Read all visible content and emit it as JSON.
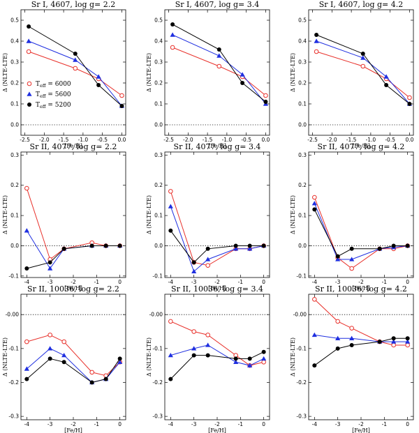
{
  "colors": {
    "t6000": "#e8302a",
    "t5600": "#1f2fe0",
    "t5200": "#000000"
  },
  "chart_data": [
    {
      "type": "line",
      "title": "Sr I, 4607, log g= 2.2",
      "xlabel": "[Fe/H]",
      "ylabel": "Δ (NLTE-LTE)",
      "xlim": [
        -2.6,
        0.1
      ],
      "ylim": [
        -0.05,
        0.55
      ],
      "xticks": [
        -2.5,
        -2.0,
        -1.5,
        -1.0,
        -0.5,
        0.0
      ],
      "xtick_labels": [
        "-2.5",
        "-2.0",
        "-1.5",
        "-1.0",
        "-0.5",
        "0.0"
      ],
      "yticks": [
        0.0,
        0.1,
        0.2,
        0.3,
        0.4,
        0.5
      ],
      "ytick_labels": [
        "0.0",
        "0.1",
        "0.2",
        "0.3",
        "0.4",
        "0.5"
      ],
      "series": [
        {
          "name": "T_eff = 6000",
          "color_key": "t6000",
          "marker": "open-circle",
          "x": [
            -2.4,
            -1.2,
            -0.6,
            0.0
          ],
          "y": [
            0.35,
            0.27,
            0.22,
            0.14
          ]
        },
        {
          "name": "T_eff = 5600",
          "color_key": "t5600",
          "marker": "triangle",
          "x": [
            -2.4,
            -1.2,
            -0.6,
            0.0
          ],
          "y": [
            0.4,
            0.31,
            0.23,
            0.09
          ]
        },
        {
          "name": "T_eff = 5200",
          "color_key": "t5200",
          "marker": "filled-circle",
          "x": [
            -2.4,
            -1.2,
            -0.6,
            0.0
          ],
          "y": [
            0.47,
            0.34,
            0.19,
            0.09
          ]
        }
      ],
      "legend": {
        "position": "lower-left",
        "entries": [
          {
            "label": "T",
            "sub": "eff",
            "value": " = 6000",
            "color_key": "t6000",
            "marker": "open-circle"
          },
          {
            "label": "T",
            "sub": "eff",
            "value": " = 5600",
            "color_key": "t5600",
            "marker": "triangle"
          },
          {
            "label": "T",
            "sub": "eff",
            "value": " = 5200",
            "color_key": "t5200",
            "marker": "filled-circle"
          }
        ]
      }
    },
    {
      "type": "line",
      "title": "Sr I, 4607, log g= 3.4",
      "xlabel": "[Fe/H]",
      "ylabel": "Δ (NLTE-LTE)",
      "xlim": [
        -2.6,
        0.1
      ],
      "ylim": [
        -0.05,
        0.55
      ],
      "xticks": [
        -2.5,
        -2.0,
        -1.5,
        -1.0,
        -0.5,
        0.0
      ],
      "xtick_labels": [
        "-2.5",
        "-2.0",
        "-1.5",
        "-1.0",
        "-0.5",
        "0.0"
      ],
      "yticks": [
        0.0,
        0.1,
        0.2,
        0.3,
        0.4,
        0.5
      ],
      "ytick_labels": [
        "0.0",
        "0.1",
        "0.2",
        "0.3",
        "0.4",
        "0.5"
      ],
      "series": [
        {
          "name": "T_eff = 6000",
          "color_key": "t6000",
          "marker": "open-circle",
          "x": [
            -2.4,
            -1.2,
            -0.6,
            0.0
          ],
          "y": [
            0.37,
            0.28,
            0.23,
            0.14
          ]
        },
        {
          "name": "T_eff = 5600",
          "color_key": "t5600",
          "marker": "triangle",
          "x": [
            -2.4,
            -1.2,
            -0.6,
            0.0
          ],
          "y": [
            0.43,
            0.33,
            0.24,
            0.1
          ]
        },
        {
          "name": "T_eff = 5200",
          "color_key": "t5200",
          "marker": "filled-circle",
          "x": [
            -2.4,
            -1.2,
            -0.6,
            0.0
          ],
          "y": [
            0.48,
            0.36,
            0.2,
            0.11
          ]
        }
      ]
    },
    {
      "type": "line",
      "title": "Sr I, 4607, log g= 4.2",
      "xlabel": "[Fe/H]",
      "ylabel": "Δ (NLTE-LTE)",
      "xlim": [
        -2.6,
        0.1
      ],
      "ylim": [
        -0.05,
        0.55
      ],
      "xticks": [
        -2.5,
        -2.0,
        -1.5,
        -1.0,
        -0.5,
        0.0
      ],
      "xtick_labels": [
        "-2.5",
        "-2.0",
        "-1.5",
        "-1.0",
        "-0.5",
        "0.0"
      ],
      "yticks": [
        0.0,
        0.1,
        0.2,
        0.3,
        0.4,
        0.5
      ],
      "ytick_labels": [
        "0.0",
        "0.1",
        "0.2",
        "0.3",
        "0.4",
        "0.5"
      ],
      "series": [
        {
          "name": "T_eff = 6000",
          "color_key": "t6000",
          "marker": "open-circle",
          "x": [
            -2.4,
            -1.2,
            -0.6,
            0.0
          ],
          "y": [
            0.35,
            0.28,
            0.22,
            0.13
          ]
        },
        {
          "name": "T_eff = 5600",
          "color_key": "t5600",
          "marker": "triangle",
          "x": [
            -2.4,
            -1.2,
            -0.6,
            0.0
          ],
          "y": [
            0.4,
            0.32,
            0.23,
            0.1
          ]
        },
        {
          "name": "T_eff = 5200",
          "color_key": "t5200",
          "marker": "filled-circle",
          "x": [
            -2.4,
            -1.2,
            -0.6,
            0.0
          ],
          "y": [
            0.43,
            0.34,
            0.19,
            0.1
          ]
        }
      ]
    },
    {
      "type": "line",
      "title": "Sr II, 4077, log g= 2.2",
      "xlabel": "[Fe/H]",
      "ylabel": "Δ (NLTE-LTE)",
      "xlim": [
        -4.25,
        0.25
      ],
      "ylim": [
        -0.105,
        0.31
      ],
      "xticks": [
        -4,
        -3,
        -2,
        -1,
        0
      ],
      "xtick_labels": [
        "-4",
        "-3",
        "-2",
        "-1",
        "0"
      ],
      "yticks": [
        -0.1,
        0.0,
        0.1,
        0.2,
        0.3
      ],
      "ytick_labels": [
        "-0.1",
        "0.0",
        "0.1",
        "0.2",
        "0.3"
      ],
      "series": [
        {
          "name": "T_eff = 6000",
          "color_key": "t6000",
          "marker": "open-circle",
          "x": [
            -4.0,
            -3.0,
            -2.4,
            -1.2,
            -0.6,
            0.0
          ],
          "y": [
            0.19,
            -0.045,
            -0.01,
            0.01,
            0.0,
            0.0
          ]
        },
        {
          "name": "T_eff = 5600",
          "color_key": "t5600",
          "marker": "triangle",
          "x": [
            -4.0,
            -3.0,
            -2.4,
            -1.2,
            -0.6,
            0.0
          ],
          "y": [
            0.05,
            -0.075,
            -0.01,
            0.0,
            0.0,
            0.0
          ]
        },
        {
          "name": "T_eff = 5200",
          "color_key": "t5200",
          "marker": "filled-circle",
          "x": [
            -4.0,
            -3.0,
            -2.4,
            -1.2,
            -0.6,
            0.0
          ],
          "y": [
            -0.075,
            -0.055,
            -0.01,
            0.0,
            0.0,
            0.0
          ]
        }
      ]
    },
    {
      "type": "line",
      "title": "Sr II, 4077, log g= 3.4",
      "xlabel": "[Fe/H]",
      "ylabel": "Δ (NLTE-LTE)",
      "xlim": [
        -4.25,
        0.25
      ],
      "ylim": [
        -0.105,
        0.31
      ],
      "xticks": [
        -4,
        -3,
        -2,
        -1,
        0
      ],
      "xtick_labels": [
        "-4",
        "-3",
        "-2",
        "-1",
        "0"
      ],
      "yticks": [
        -0.1,
        0.0,
        0.1,
        0.2,
        0.3
      ],
      "ytick_labels": [
        "-0.1",
        "0.0",
        "0.1",
        "0.2",
        "0.3"
      ],
      "series": [
        {
          "name": "T_eff = 6000",
          "color_key": "t6000",
          "marker": "open-circle",
          "x": [
            -4.0,
            -3.0,
            -2.4,
            -1.2,
            -0.6,
            0.0
          ],
          "y": [
            0.18,
            -0.055,
            -0.065,
            -0.01,
            -0.01,
            0.0
          ]
        },
        {
          "name": "T_eff = 5600",
          "color_key": "t5600",
          "marker": "triangle",
          "x": [
            -4.0,
            -3.0,
            -2.4,
            -1.2,
            -0.6,
            0.0
          ],
          "y": [
            0.13,
            -0.085,
            -0.045,
            -0.01,
            -0.01,
            0.0
          ]
        },
        {
          "name": "T_eff = 5200",
          "color_key": "t5200",
          "marker": "filled-circle",
          "x": [
            -4.0,
            -3.0,
            -2.4,
            -1.2,
            -0.6,
            0.0
          ],
          "y": [
            0.05,
            -0.055,
            -0.01,
            0.0,
            0.0,
            0.0
          ]
        }
      ]
    },
    {
      "type": "line",
      "title": "Sr II, 4077, log g= 4.2",
      "xlabel": "[Fe/H]",
      "ylabel": "Δ (NLTE-LTE)",
      "xlim": [
        -4.25,
        0.25
      ],
      "ylim": [
        -0.105,
        0.31
      ],
      "xticks": [
        -4,
        -3,
        -2,
        -1,
        0
      ],
      "xtick_labels": [
        "-4",
        "-3",
        "-2",
        "-1",
        "0"
      ],
      "yticks": [
        -0.1,
        0.0,
        0.1,
        0.2,
        0.3
      ],
      "ytick_labels": [
        "-0.1",
        "0.0",
        "0.1",
        "0.2",
        "0.3"
      ],
      "series": [
        {
          "name": "T_eff = 6000",
          "color_key": "t6000",
          "marker": "open-circle",
          "x": [
            -4.0,
            -3.0,
            -2.4,
            -1.2,
            -0.6,
            0.0
          ],
          "y": [
            0.16,
            -0.04,
            -0.075,
            -0.01,
            -0.01,
            0.0
          ]
        },
        {
          "name": "T_eff = 5600",
          "color_key": "t5600",
          "marker": "triangle",
          "x": [
            -4.0,
            -3.0,
            -2.4,
            -1.2,
            -0.6,
            0.0
          ],
          "y": [
            0.14,
            -0.045,
            -0.045,
            -0.01,
            -0.005,
            0.0
          ]
        },
        {
          "name": "T_eff = 5200",
          "color_key": "t5200",
          "marker": "filled-circle",
          "x": [
            -4.0,
            -3.0,
            -2.4,
            -1.2,
            -0.6,
            0.0
          ],
          "y": [
            0.12,
            -0.035,
            -0.01,
            -0.01,
            0.0,
            0.0
          ]
        }
      ]
    },
    {
      "type": "line",
      "title": "Sr II, 10036, log g= 2.2",
      "xlabel": "[Fe/H]",
      "ylabel": "Δ (NLTE-LTE)",
      "xlim": [
        -4.25,
        0.25
      ],
      "ylim": [
        -0.31,
        0.06
      ],
      "xticks": [
        -4,
        -3,
        -2,
        -1,
        0
      ],
      "xtick_labels": [
        "-4",
        "-3",
        "-2",
        "-1",
        "0"
      ],
      "yticks": [
        -0.3,
        -0.2,
        -0.1,
        0.0
      ],
      "ytick_labels": [
        "-0.3",
        "-0.2",
        "-0.1",
        "-0.00"
      ],
      "series": [
        {
          "name": "T_eff = 6000",
          "color_key": "t6000",
          "marker": "open-circle",
          "x": [
            -4.0,
            -3.0,
            -2.4,
            -1.2,
            -0.6,
            0.0
          ],
          "y": [
            -0.08,
            -0.06,
            -0.08,
            -0.17,
            -0.18,
            -0.14
          ]
        },
        {
          "name": "T_eff = 5600",
          "color_key": "t5600",
          "marker": "triangle",
          "x": [
            -4.0,
            -3.0,
            -2.4,
            -1.2,
            -0.6,
            0.0
          ],
          "y": [
            -0.16,
            -0.1,
            -0.12,
            -0.2,
            -0.19,
            -0.14
          ]
        },
        {
          "name": "T_eff = 5200",
          "color_key": "t5200",
          "marker": "filled-circle",
          "x": [
            -4.0,
            -3.0,
            -2.4,
            -1.2,
            -0.6,
            0.0
          ],
          "y": [
            -0.19,
            -0.13,
            -0.14,
            -0.2,
            -0.19,
            -0.13
          ]
        }
      ]
    },
    {
      "type": "line",
      "title": "Sr II, 10036, log g= 3.4",
      "xlabel": "[Fe/H]",
      "ylabel": "Δ (NLTE-LTE)",
      "xlim": [
        -4.25,
        0.25
      ],
      "ylim": [
        -0.31,
        0.06
      ],
      "xticks": [
        -4,
        -3,
        -2,
        -1,
        0
      ],
      "xtick_labels": [
        "-4",
        "-3",
        "-2",
        "-1",
        "0"
      ],
      "yticks": [
        -0.3,
        -0.2,
        -0.1,
        0.0
      ],
      "ytick_labels": [
        "-0.3",
        "-0.2",
        "-0.1",
        "-0.00"
      ],
      "series": [
        {
          "name": "T_eff = 6000",
          "color_key": "t6000",
          "marker": "open-circle",
          "x": [
            -4.0,
            -3.0,
            -2.4,
            -1.2,
            -0.6,
            0.0
          ],
          "y": [
            -0.02,
            -0.05,
            -0.06,
            -0.12,
            -0.15,
            -0.14
          ]
        },
        {
          "name": "T_eff = 5600",
          "color_key": "t5600",
          "marker": "triangle",
          "x": [
            -4.0,
            -3.0,
            -2.4,
            -1.2,
            -0.6,
            0.0
          ],
          "y": [
            -0.12,
            -0.1,
            -0.09,
            -0.14,
            -0.15,
            -0.13
          ]
        },
        {
          "name": "T_eff = 5200",
          "color_key": "t5200",
          "marker": "filled-circle",
          "x": [
            -4.0,
            -3.0,
            -2.4,
            -1.2,
            -0.6,
            0.0
          ],
          "y": [
            -0.19,
            -0.12,
            -0.12,
            -0.13,
            -0.13,
            -0.11
          ]
        }
      ]
    },
    {
      "type": "line",
      "title": "Sr II, 10036, log g= 4.2",
      "xlabel": "[Fe/H]",
      "ylabel": "Δ (NLTE-LTE)",
      "xlim": [
        -4.25,
        0.25
      ],
      "ylim": [
        -0.31,
        0.06
      ],
      "xticks": [
        -4,
        -3,
        -2,
        -1,
        0
      ],
      "xtick_labels": [
        "-4",
        "-3",
        "-2",
        "-1",
        "0"
      ],
      "yticks": [
        -0.3,
        -0.2,
        -0.1,
        0.0
      ],
      "ytick_labels": [
        "-0.3",
        "-0.2",
        "-0.1",
        "-0.00"
      ],
      "series": [
        {
          "name": "T_eff = 6000",
          "color_key": "t6000",
          "marker": "open-circle",
          "x": [
            -4.0,
            -3.0,
            -2.4,
            -1.2,
            -0.6,
            0.0
          ],
          "y": [
            0.045,
            -0.02,
            -0.04,
            -0.08,
            -0.09,
            -0.09
          ]
        },
        {
          "name": "T_eff = 5600",
          "color_key": "t5600",
          "marker": "triangle",
          "x": [
            -4.0,
            -3.0,
            -2.4,
            -1.2,
            -0.6,
            0.0
          ],
          "y": [
            -0.06,
            -0.07,
            -0.07,
            -0.08,
            -0.08,
            -0.08
          ]
        },
        {
          "name": "T_eff = 5200",
          "color_key": "t5200",
          "marker": "filled-circle",
          "x": [
            -4.0,
            -3.0,
            -2.4,
            -1.2,
            -0.6,
            0.0
          ],
          "y": [
            -0.15,
            -0.1,
            -0.09,
            -0.08,
            -0.07,
            -0.07
          ]
        }
      ]
    }
  ]
}
